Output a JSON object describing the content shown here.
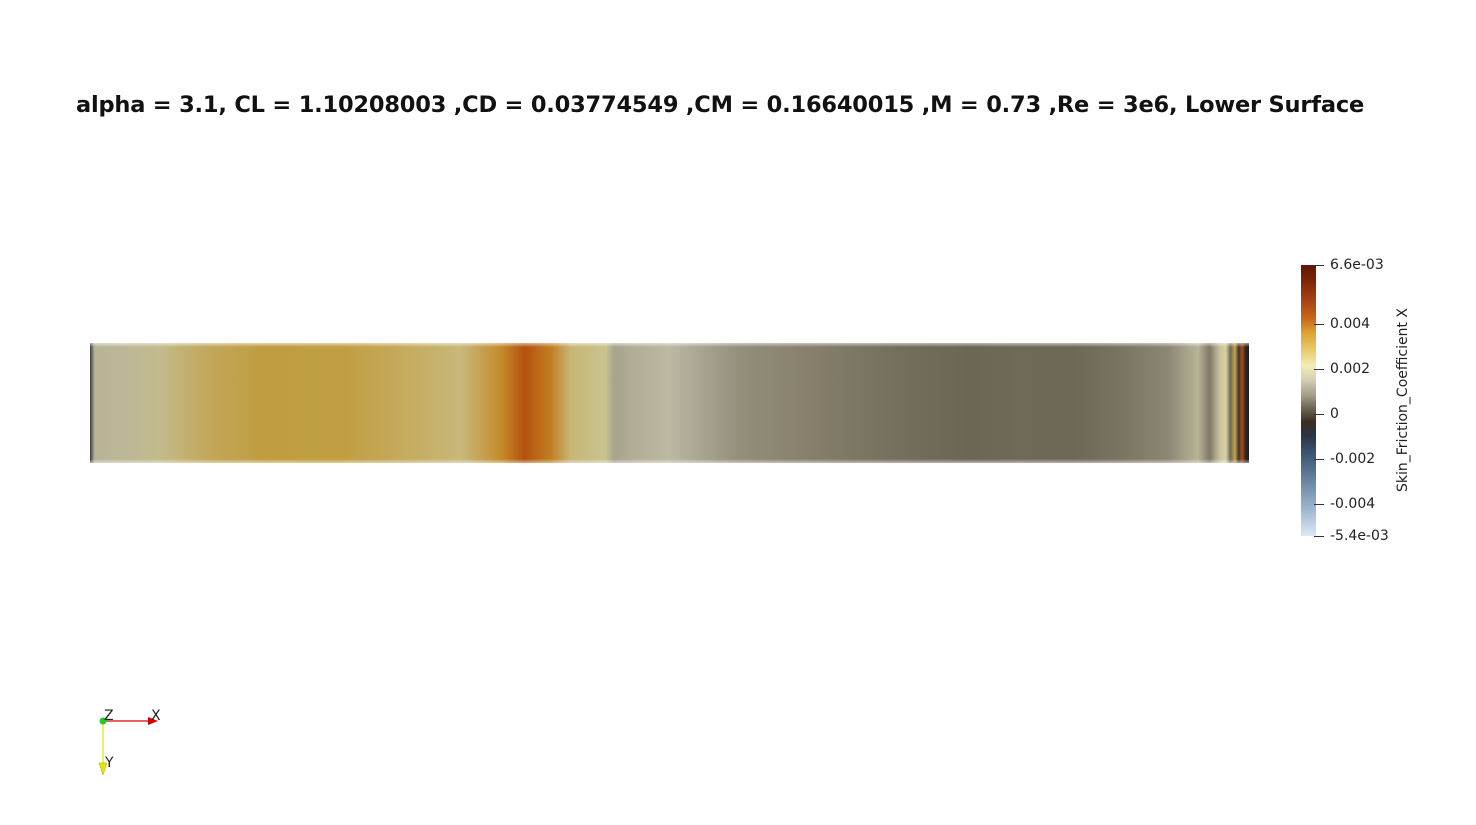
{
  "title": "alpha = 3.1, CL = 1.10208003 ,CD = 0.03774549 ,CM = 0.16640015 ,M = 0.73 ,Re = 3e6, Lower Surface",
  "colorbar": {
    "title": "Skin_Friction_Coefficient X",
    "max_label": "6.6e-03",
    "min_label": "-5.4e-03",
    "range": [
      -0.0054,
      0.0066
    ],
    "ticks": [
      {
        "value": 0.0066,
        "label": "6.6e-03"
      },
      {
        "value": 0.004,
        "label": "0.004"
      },
      {
        "value": 0.002,
        "label": "0.002"
      },
      {
        "value": 0,
        "label": "0"
      },
      {
        "value": -0.002,
        "label": "-0.002"
      },
      {
        "value": -0.004,
        "label": "-0.004"
      },
      {
        "value": -0.0054,
        "label": "-5.4e-03"
      }
    ],
    "colormap": "warm-to-cool diverging (dark red / orange / cream / dark brown / blue / light blue)"
  },
  "orientation_axes": {
    "x_label": "X",
    "y_label": "Y",
    "z_label": "Z",
    "x_color": "#d40000",
    "y_color": "#e6e600",
    "z_color": "#22cc22"
  }
}
